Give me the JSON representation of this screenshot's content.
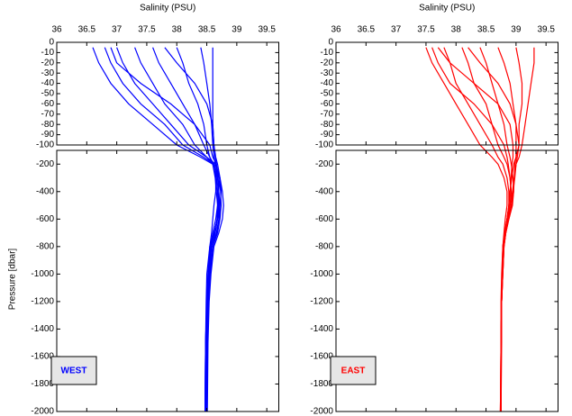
{
  "chart_data": [
    {
      "type": "line",
      "title": "Salinity (PSU)",
      "ylabel": "Pressure [dbar]",
      "label": "WEST",
      "color": "#0000ff",
      "xlim": [
        36,
        39.7
      ],
      "xticks": [
        36,
        36.5,
        37,
        37.5,
        38,
        38.5,
        39,
        39.5
      ],
      "ylim_upper": [
        -100,
        0
      ],
      "yticks_upper": [
        0,
        -10,
        -20,
        -30,
        -40,
        -50,
        -60,
        -70,
        -80,
        -90,
        -100
      ],
      "ylim": [
        -2000,
        -100
      ],
      "yticks": [
        -200,
        -400,
        -600,
        -800,
        -1000,
        -1200,
        -1400,
        -1600,
        -1800,
        -2000
      ],
      "y": [
        -5,
        -20,
        -40,
        -60,
        -80,
        -100,
        -150,
        -200,
        -300,
        -400,
        -500,
        -600,
        -700,
        -800,
        -1000,
        -1200,
        -1500,
        -2000
      ],
      "series": [
        {
          "values": [
            36.6,
            36.7,
            36.9,
            37.2,
            37.6,
            38.0,
            38.4,
            38.6,
            38.65,
            38.65,
            38.62,
            38.6,
            38.58,
            38.55,
            38.52,
            38.5,
            38.48,
            38.47
          ]
        },
        {
          "values": [
            36.8,
            36.9,
            37.1,
            37.4,
            37.8,
            38.1,
            38.45,
            38.62,
            38.7,
            38.7,
            38.68,
            38.65,
            38.6,
            38.56,
            38.52,
            38.5,
            38.48,
            38.47
          ]
        },
        {
          "values": [
            37.0,
            37.1,
            37.3,
            37.6,
            37.9,
            38.2,
            38.5,
            38.65,
            38.72,
            38.74,
            38.72,
            38.68,
            38.62,
            38.57,
            38.53,
            38.5,
            38.49,
            38.48
          ]
        },
        {
          "values": [
            37.3,
            37.4,
            37.6,
            37.8,
            38.1,
            38.3,
            38.5,
            38.6,
            38.66,
            38.68,
            38.7,
            38.68,
            38.62,
            38.55,
            38.5,
            38.49,
            38.48,
            38.47
          ]
        },
        {
          "values": [
            37.6,
            37.7,
            37.9,
            38.1,
            38.3,
            38.45,
            38.55,
            38.62,
            38.68,
            38.7,
            38.71,
            38.7,
            38.66,
            38.6,
            38.55,
            38.52,
            38.5,
            38.49
          ]
        },
        {
          "values": [
            38.0,
            38.1,
            38.2,
            38.35,
            38.45,
            38.5,
            38.55,
            38.6,
            38.64,
            38.66,
            38.68,
            38.67,
            38.63,
            38.58,
            38.54,
            38.51,
            38.49,
            38.48
          ]
        },
        {
          "values": [
            38.4,
            38.45,
            38.5,
            38.55,
            38.58,
            38.6,
            38.62,
            38.64,
            38.66,
            38.68,
            38.69,
            38.68,
            38.64,
            38.6,
            38.56,
            38.53,
            38.51,
            38.5
          ]
        },
        {
          "values": [
            38.6,
            38.6,
            38.6,
            38.6,
            38.6,
            38.62,
            38.65,
            38.68,
            38.72,
            38.76,
            38.78,
            38.76,
            38.7,
            38.62,
            38.57,
            38.54,
            38.52,
            38.51
          ]
        },
        {
          "values": [
            36.9,
            37.0,
            37.4,
            37.9,
            38.3,
            38.55,
            38.6,
            38.66,
            38.7,
            38.73,
            38.74,
            38.72,
            38.68,
            38.6,
            38.55,
            38.51,
            38.5,
            38.49
          ]
        },
        {
          "values": [
            37.8,
            38.0,
            38.3,
            38.5,
            38.6,
            38.62,
            38.64,
            38.66,
            38.68,
            38.7,
            38.72,
            38.71,
            38.67,
            38.6,
            38.55,
            38.52,
            38.5,
            38.48
          ]
        }
      ]
    },
    {
      "type": "line",
      "title": "Salinity (PSU)",
      "label": "EAST",
      "color": "#ff0000",
      "xlim": [
        36,
        39.7
      ],
      "xticks": [
        36,
        36.5,
        37,
        37.5,
        38,
        38.5,
        39,
        39.5
      ],
      "ylim_upper": [
        -100,
        0
      ],
      "yticks_upper": [
        0,
        -10,
        -20,
        -30,
        -40,
        -50,
        -60,
        -70,
        -80,
        -90,
        -100
      ],
      "ylim": [
        -2000,
        -100
      ],
      "yticks": [
        -200,
        -400,
        -600,
        -800,
        -1000,
        -1200,
        -1400,
        -1600,
        -1800,
        -2000
      ],
      "y": [
        -5,
        -20,
        -40,
        -60,
        -80,
        -100,
        -150,
        -200,
        -300,
        -400,
        -500,
        -600,
        -700,
        -800,
        -1000,
        -1200,
        -1500,
        -2000
      ],
      "series": [
        {
          "values": [
            37.5,
            37.6,
            37.8,
            38.0,
            38.2,
            38.4,
            38.6,
            38.7,
            38.8,
            38.85,
            38.85,
            38.82,
            38.8,
            38.78,
            38.76,
            38.75,
            38.75,
            38.74
          ]
        },
        {
          "values": [
            37.8,
            37.9,
            38.0,
            38.2,
            38.4,
            38.6,
            38.7,
            38.78,
            38.85,
            38.88,
            38.88,
            38.85,
            38.82,
            38.79,
            38.77,
            38.76,
            38.75,
            38.75
          ]
        },
        {
          "values": [
            38.1,
            38.2,
            38.3,
            38.5,
            38.6,
            38.7,
            38.8,
            38.85,
            38.9,
            38.92,
            38.9,
            38.86,
            38.82,
            38.79,
            38.77,
            38.76,
            38.75,
            38.75
          ]
        },
        {
          "values": [
            38.4,
            38.5,
            38.6,
            38.7,
            38.8,
            38.85,
            38.9,
            38.92,
            38.95,
            38.96,
            38.94,
            38.88,
            38.83,
            38.8,
            38.78,
            38.76,
            38.75,
            38.75
          ]
        },
        {
          "values": [
            38.7,
            38.8,
            38.9,
            38.95,
            39.0,
            39.0,
            39.0,
            38.98,
            38.97,
            38.96,
            38.93,
            38.88,
            38.83,
            38.8,
            38.78,
            38.76,
            38.75,
            38.75
          ]
        },
        {
          "values": [
            39.0,
            39.05,
            39.1,
            39.1,
            39.05,
            39.05,
            39.02,
            39.0,
            38.98,
            38.95,
            38.92,
            38.87,
            38.83,
            38.8,
            38.78,
            38.76,
            38.76,
            38.75
          ]
        },
        {
          "values": [
            39.3,
            39.3,
            39.25,
            39.2,
            39.15,
            39.1,
            39.05,
            39.0,
            38.97,
            38.94,
            38.9,
            38.86,
            38.82,
            38.79,
            38.77,
            38.76,
            38.75,
            38.75
          ]
        },
        {
          "values": [
            37.7,
            37.9,
            38.3,
            38.7,
            38.9,
            38.95,
            38.95,
            38.93,
            38.92,
            38.9,
            38.88,
            38.85,
            38.82,
            38.79,
            38.77,
            38.76,
            38.75,
            38.74
          ]
        },
        {
          "values": [
            38.2,
            38.4,
            38.7,
            38.9,
            39.0,
            39.05,
            39.0,
            38.96,
            38.93,
            38.9,
            38.88,
            38.85,
            38.81,
            38.78,
            38.77,
            38.76,
            38.75,
            38.75
          ]
        },
        {
          "values": [
            37.6,
            37.7,
            37.9,
            38.3,
            38.6,
            38.8,
            38.85,
            38.87,
            38.9,
            38.92,
            38.9,
            38.85,
            38.81,
            38.78,
            38.77,
            38.76,
            38.75,
            38.74
          ]
        }
      ]
    }
  ]
}
